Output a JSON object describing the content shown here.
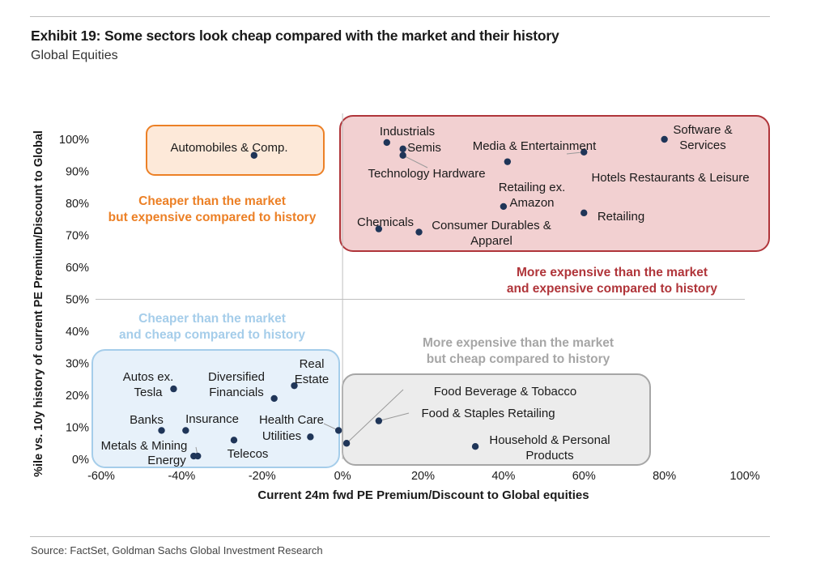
{
  "exhibit": {
    "title": "Exhibit 19: Some sectors look cheap compared with the market and their history",
    "subtitle": "Global Equities",
    "source": "Source: FactSet, Goldman Sachs Global Investment Research"
  },
  "chart_data": {
    "type": "scatter",
    "title": "Exhibit 19: Some sectors look cheap compared with the market and their history",
    "subtitle": "Global Equities",
    "xlabel": "Current 24m fwd PE Premium/Discount to Global equities",
    "ylabel": "%ile vs. 10y history of current PE Premium/Discount to Global",
    "xlim": [
      -60,
      100
    ],
    "ylim": [
      0,
      100
    ],
    "x_ticks": [
      "-60%",
      "-40%",
      "-20%",
      "0%",
      "20%",
      "40%",
      "60%",
      "80%",
      "100%"
    ],
    "y_ticks": [
      "0%",
      "10%",
      "20%",
      "30%",
      "40%",
      "50%",
      "60%",
      "70%",
      "80%",
      "90%",
      "100%"
    ],
    "grid": false,
    "point_color": "#1f3558",
    "points": [
      {
        "label": "Software & Services",
        "x": 80,
        "y": 100
      },
      {
        "label": "Industrials",
        "x": 11,
        "y": 99
      },
      {
        "label": "Semis",
        "x": 15,
        "y": 97
      },
      {
        "label": "Technology Hardware",
        "x": 15,
        "y": 95
      },
      {
        "label": "Media & Entertainment",
        "x": 60,
        "y": 96
      },
      {
        "label": "Automobiles & Comp.",
        "x": -22,
        "y": 95
      },
      {
        "label": "Hotels Restaurants & Leisure",
        "x": 41,
        "y": 93
      },
      {
        "label": "Retailing ex. Amazon",
        "x": 40,
        "y": 79
      },
      {
        "label": "Retailing",
        "x": 60,
        "y": 77
      },
      {
        "label": "Chemicals",
        "x": 9,
        "y": 72
      },
      {
        "label": "Consumer Durables & Apparel",
        "x": 19,
        "y": 71
      },
      {
        "label": "Autos ex. Tesla",
        "x": -42,
        "y": 22
      },
      {
        "label": "Real Estate",
        "x": -12,
        "y": 23
      },
      {
        "label": "Diversified Financials",
        "x": -17,
        "y": 19
      },
      {
        "label": "Banks",
        "x": -45,
        "y": 9
      },
      {
        "label": "Insurance",
        "x": -39,
        "y": 9
      },
      {
        "label": "Health Care",
        "x": -1,
        "y": 9
      },
      {
        "label": "Utilities",
        "x": -8,
        "y": 7
      },
      {
        "label": "Telecos",
        "x": -27,
        "y": 6
      },
      {
        "label": "Metals & Mining",
        "x": -36,
        "y": 1
      },
      {
        "label": "Energy",
        "x": -37,
        "y": 1
      },
      {
        "label": "Food Beverage & Tobacco",
        "x": 1,
        "y": 5
      },
      {
        "label": "Food & Staples Retailing",
        "x": 9,
        "y": 12
      },
      {
        "label": "Household & Personal Products",
        "x": 33,
        "y": 4
      }
    ],
    "quadrants": [
      {
        "text": [
          "Cheaper than the market",
          "but expensive compared to history"
        ],
        "color": "#ec8026",
        "fill": "#fde9d9"
      },
      {
        "text": [
          "More expensive than the market",
          "and expensive compared to history"
        ],
        "color": "#b0353a",
        "fill": "#f2d0d1"
      },
      {
        "text": [
          "Cheaper than the market",
          "and cheap compared to history"
        ],
        "color": "#a5cdea",
        "fill": "#e7f1fa"
      },
      {
        "text": [
          "More expensive than the market",
          "but cheap compared to history"
        ],
        "color": "#a6a6a6",
        "fill": "#ececec"
      }
    ]
  }
}
